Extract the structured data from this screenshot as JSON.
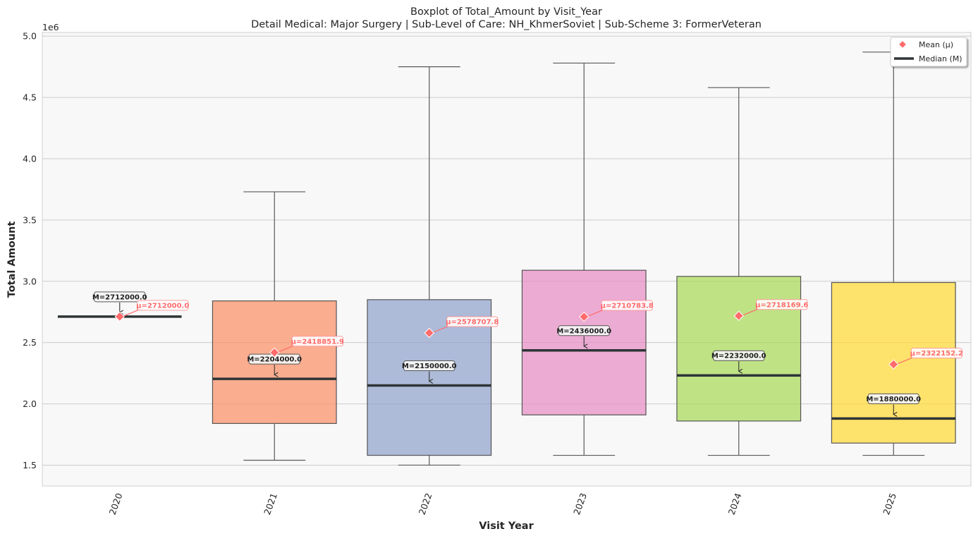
{
  "chart_data": {
    "type": "boxplot",
    "title": "Boxplot of Total_Amount by Visit_Year",
    "subtitle": "Detail Medical: Major Surgery | Sub-Level of Care: NH_KhmerSoviet | Sub-Scheme 3: FormerVeteran",
    "xlabel": "Visit Year",
    "ylabel": "Total Amount",
    "y_offset_label": "1e6",
    "ylim": [
      1.33,
      5.03
    ],
    "yticks": [
      1.5,
      2.0,
      2.5,
      3.0,
      3.5,
      4.0,
      4.5,
      5.0
    ],
    "ytick_labels": [
      "1.5",
      "2.0",
      "2.5",
      "3.0",
      "3.5",
      "4.0",
      "4.5",
      "5.0"
    ],
    "grid": true,
    "legend_position": "top-right",
    "legend": [
      {
        "label": "Mean (μ)",
        "marker": "diamond",
        "color": "#ff6b6b"
      },
      {
        "label": "Median (M)",
        "marker": "line",
        "color": "#2e3436"
      }
    ],
    "categories": [
      "2020",
      "2021",
      "2022",
      "2023",
      "2024",
      "2025"
    ],
    "boxes": [
      {
        "category": "2020",
        "whisker_low": 2.712,
        "q1": 2.712,
        "median": 2.712,
        "q3": 2.712,
        "whisker_high": 2.712,
        "mean": 2.712,
        "color": "#66c2a5",
        "median_label": "M=2712000.0",
        "mean_label": "μ=2712000.0"
      },
      {
        "category": "2021",
        "whisker_low": 1.54,
        "q1": 1.84,
        "median": 2.204,
        "q3": 2.84,
        "whisker_high": 3.73,
        "mean": 2.4188519,
        "color": "#fc8d62",
        "median_label": "M=2204000.0",
        "mean_label": "μ=2418851.9"
      },
      {
        "category": "2022",
        "whisker_low": 1.5,
        "q1": 1.58,
        "median": 2.15,
        "q3": 2.85,
        "whisker_high": 4.75,
        "mean": 2.5787078,
        "color": "#8da0cb",
        "median_label": "M=2150000.0",
        "mean_label": "μ=2578707.8"
      },
      {
        "category": "2023",
        "whisker_low": 1.58,
        "q1": 1.91,
        "median": 2.436,
        "q3": 3.09,
        "whisker_high": 4.78,
        "mean": 2.7107838,
        "color": "#e78ac3",
        "median_label": "M=2436000.0",
        "mean_label": "μ=2710783.8"
      },
      {
        "category": "2024",
        "whisker_low": 1.58,
        "q1": 1.86,
        "median": 2.232,
        "q3": 3.04,
        "whisker_high": 4.58,
        "mean": 2.7181696,
        "color": "#a6d854",
        "median_label": "M=2232000.0",
        "mean_label": "μ=2718169.6"
      },
      {
        "category": "2025",
        "whisker_low": 1.58,
        "q1": 1.68,
        "median": 1.88,
        "q3": 2.99,
        "whisker_high": 4.87,
        "mean": 2.3221522,
        "color": "#ffd92f",
        "median_label": "M=1880000.0",
        "mean_label": "μ=2322152.2"
      }
    ]
  }
}
